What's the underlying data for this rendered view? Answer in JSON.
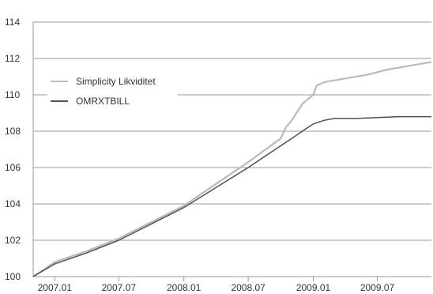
{
  "chart_data": {
    "type": "line",
    "title": "",
    "xlabel": "",
    "ylabel": "",
    "ylim": [
      100,
      114
    ],
    "yticks": [
      100,
      102,
      104,
      106,
      108,
      110,
      112,
      114
    ],
    "xlim": [
      "2006-11-01",
      "2009-12-01"
    ],
    "xtick_labels": [
      "2007.01",
      "2007.07",
      "2008.01",
      "2008.07",
      "2009.01",
      "2009.07"
    ],
    "xtick_dates": [
      "2007-01-01",
      "2007-07-01",
      "2008-01-01",
      "2008-07-01",
      "2009-01-01",
      "2009-07-01"
    ],
    "grid": "horizontal",
    "legend_position": "upper-left",
    "series": [
      {
        "name": "Simplicity Likviditet",
        "color": "#b5bdb1",
        "x": [
          "2006-11-01",
          "2007-01-01",
          "2007-04-01",
          "2007-07-01",
          "2007-10-01",
          "2008-01-01",
          "2008-04-01",
          "2008-07-01",
          "2008-10-01",
          "2008-10-15",
          "2008-11-01",
          "2008-12-01",
          "2009-01-01",
          "2009-01-10",
          "2009-02-01",
          "2009-04-01",
          "2009-06-01",
          "2009-08-01",
          "2009-10-01",
          "2009-12-01"
        ],
        "values": [
          100.0,
          100.8,
          101.4,
          102.1,
          103.0,
          103.9,
          105.1,
          106.3,
          107.6,
          108.2,
          108.6,
          109.5,
          110.0,
          110.5,
          110.7,
          110.9,
          111.1,
          111.4,
          111.6,
          111.8
        ]
      },
      {
        "name": "OMRXTBILL",
        "color": "#505050",
        "x": [
          "2006-11-01",
          "2007-01-01",
          "2007-04-01",
          "2007-07-01",
          "2007-10-01",
          "2008-01-01",
          "2008-04-01",
          "2008-07-01",
          "2008-10-01",
          "2008-11-01",
          "2008-12-01",
          "2009-01-01",
          "2009-02-01",
          "2009-03-01",
          "2009-05-01",
          "2009-07-01",
          "2009-09-01",
          "2009-12-01"
        ],
        "values": [
          100.0,
          100.7,
          101.3,
          102.0,
          102.9,
          103.8,
          104.9,
          106.0,
          107.2,
          107.6,
          108.0,
          108.4,
          108.6,
          108.7,
          108.7,
          108.75,
          108.8,
          108.8
        ]
      }
    ]
  }
}
